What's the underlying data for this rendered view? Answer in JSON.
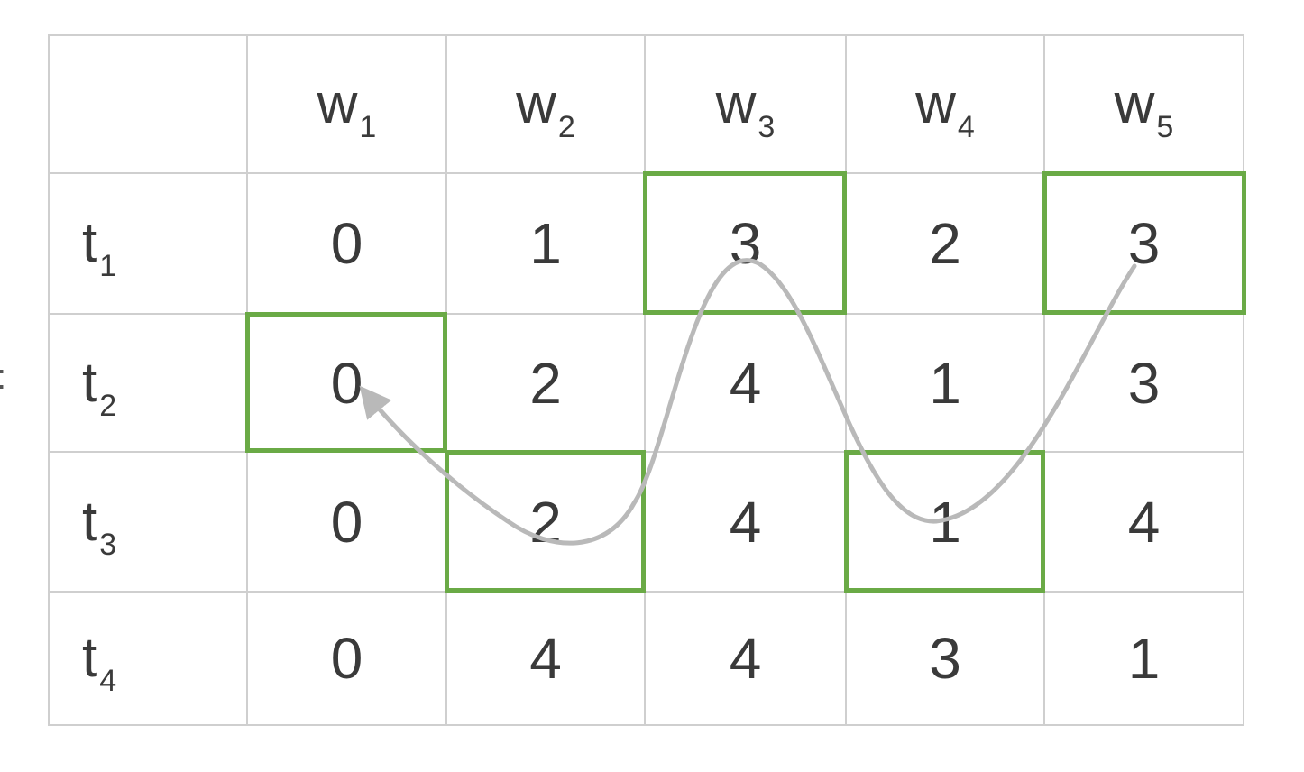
{
  "edge_mark": ":",
  "header": {
    "corner": "",
    "columns": [
      {
        "base": "w",
        "sub": "1"
      },
      {
        "base": "w",
        "sub": "2"
      },
      {
        "base": "w",
        "sub": "3"
      },
      {
        "base": "w",
        "sub": "4"
      },
      {
        "base": "w",
        "sub": "5"
      }
    ]
  },
  "rows": [
    {
      "label": {
        "base": "t",
        "sub": "1"
      },
      "values": [
        "0",
        "1",
        "3",
        "2",
        "3"
      ]
    },
    {
      "label": {
        "base": "t",
        "sub": "2"
      },
      "values": [
        "0",
        "2",
        "4",
        "1",
        "3"
      ]
    },
    {
      "label": {
        "base": "t",
        "sub": "3"
      },
      "values": [
        "0",
        "2",
        "4",
        "1",
        "4"
      ]
    },
    {
      "label": {
        "base": "t",
        "sub": "4"
      },
      "values": [
        "0",
        "4",
        "4",
        "3",
        "1"
      ]
    }
  ],
  "highlighted_cells": [
    {
      "row": 1,
      "col": 0
    },
    {
      "row": 2,
      "col": 1
    },
    {
      "row": 0,
      "col": 2
    },
    {
      "row": 2,
      "col": 3
    },
    {
      "row": 0,
      "col": 4
    }
  ],
  "path_order": [
    "t1-w5",
    "t3-w4",
    "t1-w3",
    "t3-w2",
    "t2-w1"
  ],
  "colors": {
    "highlight": "#6aaa46",
    "grid_line": "#cfcfcf",
    "path": "#b9b9b9",
    "text": "#3a3a3a"
  }
}
